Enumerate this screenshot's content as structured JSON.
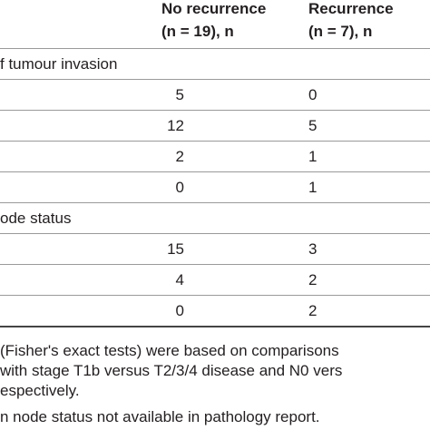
{
  "header": {
    "columns": [
      {
        "title": "No recurrence",
        "subtitle": "(n = 19), n"
      },
      {
        "title": "Recurrence",
        "subtitle": "(n = 7), n"
      }
    ]
  },
  "sections": [
    {
      "label": "f tumour invasion",
      "rows": [
        [
          5,
          0
        ],
        [
          12,
          5
        ],
        [
          2,
          1
        ],
        [
          0,
          1
        ]
      ]
    },
    {
      "label": "ode status",
      "rows": [
        [
          15,
          3
        ],
        [
          4,
          2
        ],
        [
          0,
          2
        ]
      ]
    }
  ],
  "footnotes": [
    "(Fisher's exact tests) were based on comparisons",
    "with stage T1b versus T2/3/4 disease and N0 vers",
    "espectively.",
    "n node status not available in pathology report."
  ]
}
